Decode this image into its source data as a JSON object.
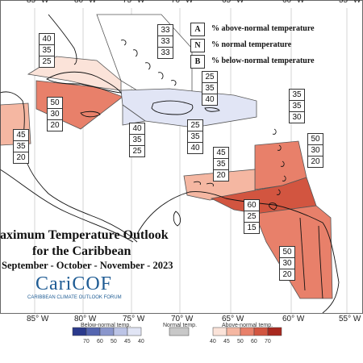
{
  "legend": {
    "items": [
      {
        "key": "A",
        "text": "% above-normal temperature"
      },
      {
        "key": "N",
        "text": "% normal temperature"
      },
      {
        "key": "B",
        "text": "% below-normal temperature"
      }
    ]
  },
  "title": {
    "line1": "aximum Temperature Outlook",
    "line2": "for the Caribbean",
    "line3": "September - October - November - 2023"
  },
  "logo": {
    "name": "CariCOF",
    "subtitle": "CARIBBEAN CLIMATE OUTLOOK FORUM"
  },
  "longitude_labels": [
    "85° W",
    "80° W",
    "75° W",
    "70° W",
    "65° W",
    "60° W",
    "55° W"
  ],
  "forecast_zones": [
    {
      "above": "40",
      "normal": "35",
      "below": "25"
    },
    {
      "above": "33",
      "normal": "33",
      "below": "33"
    },
    {
      "above": "25",
      "normal": "35",
      "below": "40"
    },
    {
      "above": "35",
      "normal": "35",
      "below": "30"
    },
    {
      "above": "50",
      "normal": "30",
      "below": "20"
    },
    {
      "above": "45",
      "normal": "35",
      "below": "20"
    },
    {
      "above": "40",
      "normal": "35",
      "below": "25"
    },
    {
      "above": "25",
      "normal": "35",
      "below": "40"
    },
    {
      "above": "50",
      "normal": "30",
      "below": "20"
    },
    {
      "above": "45",
      "normal": "35",
      "below": "20"
    },
    {
      "above": "60",
      "normal": "25",
      "below": "15"
    },
    {
      "above": "50",
      "normal": "30",
      "below": "20"
    }
  ],
  "color_scale": {
    "below_label": "Below-normal temp.",
    "normal_label": "Normal temp.",
    "above_label": "Above-normal temp.",
    "below_ticks": [
      "70",
      "60",
      "50",
      "45",
      "40"
    ],
    "above_ticks": [
      "40",
      "45",
      "50",
      "60",
      "70"
    ],
    "below_colors": [
      "#2b3a8c",
      "#5566b0",
      "#8a96cc",
      "#bcc4e6",
      "#e1e5f5"
    ],
    "normal_color": "#c8c8c8",
    "above_colors": [
      "#fbe3d9",
      "#f5b7a2",
      "#e8806a",
      "#d25540",
      "#a8281f"
    ]
  }
}
